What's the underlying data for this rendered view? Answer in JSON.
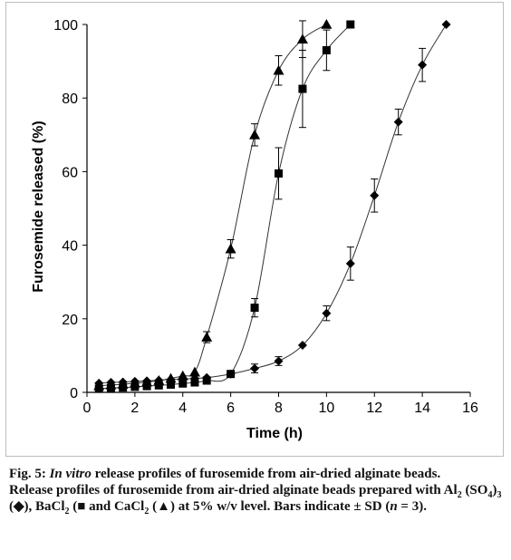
{
  "chart_data": {
    "type": "scatter",
    "title": "",
    "xlabel": "Time (h)",
    "ylabel": "Furosemide released (%)",
    "xlim": [
      0,
      16
    ],
    "ylim": [
      0,
      100
    ],
    "x_ticks": [
      "0",
      "2",
      "4",
      "6",
      "8",
      "10",
      "12",
      "14",
      "16"
    ],
    "y_ticks": [
      "0",
      "20",
      "40",
      "60",
      "80",
      "100"
    ],
    "grid": false,
    "legend": "none",
    "series": [
      {
        "label": "Al2(SO4)3",
        "marker": "diamond",
        "color": "#000000",
        "points": [
          {
            "x": 0.5,
            "y": 2.5,
            "sd": 0.6
          },
          {
            "x": 1,
            "y": 2.7,
            "sd": 0.6
          },
          {
            "x": 1.5,
            "y": 2.8,
            "sd": 0.6
          },
          {
            "x": 2,
            "y": 3.0,
            "sd": 0.6
          },
          {
            "x": 2.5,
            "y": 3.1,
            "sd": 0.6
          },
          {
            "x": 3,
            "y": 3.3,
            "sd": 0.6
          },
          {
            "x": 3.5,
            "y": 3.5,
            "sd": 0.6
          },
          {
            "x": 4,
            "y": 3.6,
            "sd": 0.6
          },
          {
            "x": 4.5,
            "y": 3.8,
            "sd": 0.6
          },
          {
            "x": 5,
            "y": 4.0,
            "sd": 0.6
          },
          {
            "x": 6,
            "y": 5.0,
            "sd": 0.8
          },
          {
            "x": 7,
            "y": 6.5,
            "sd": 1.2
          },
          {
            "x": 8,
            "y": 8.5,
            "sd": 1.2
          },
          {
            "x": 9,
            "y": 12.8,
            "sd": 0.8
          },
          {
            "x": 10,
            "y": 21.5,
            "sd": 2.0
          },
          {
            "x": 11,
            "y": 35.0,
            "sd": 4.5
          },
          {
            "x": 12,
            "y": 53.5,
            "sd": 4.5
          },
          {
            "x": 13,
            "y": 73.5,
            "sd": 3.5
          },
          {
            "x": 14,
            "y": 89.0,
            "sd": 4.5
          },
          {
            "x": 15,
            "y": 100,
            "sd": 0
          }
        ]
      },
      {
        "label": "BaCl2",
        "marker": "square",
        "color": "#000000",
        "points": [
          {
            "x": 0.5,
            "y": 1.0,
            "sd": 0.5
          },
          {
            "x": 1,
            "y": 1.2,
            "sd": 0.5
          },
          {
            "x": 1.5,
            "y": 1.3,
            "sd": 0.5
          },
          {
            "x": 2,
            "y": 1.5,
            "sd": 0.5
          },
          {
            "x": 2.5,
            "y": 1.7,
            "sd": 0.5
          },
          {
            "x": 3,
            "y": 1.9,
            "sd": 0.5
          },
          {
            "x": 3.5,
            "y": 2.1,
            "sd": 0.5
          },
          {
            "x": 4,
            "y": 2.4,
            "sd": 0.5
          },
          {
            "x": 4.5,
            "y": 2.7,
            "sd": 0.5
          },
          {
            "x": 5,
            "y": 3.2,
            "sd": 0.5
          },
          {
            "x": 6,
            "y": 5.0,
            "sd": 0.8
          },
          {
            "x": 7,
            "y": 23.0,
            "sd": 2.5
          },
          {
            "x": 8,
            "y": 59.5,
            "sd": 7.0
          },
          {
            "x": 9,
            "y": 82.5,
            "sd": 10.5
          },
          {
            "x": 10,
            "y": 93.0,
            "sd": 5.5
          },
          {
            "x": 11,
            "y": 100,
            "sd": 0
          }
        ]
      },
      {
        "label": "CaCl2",
        "marker": "triangle",
        "color": "#000000",
        "points": [
          {
            "x": 0.5,
            "y": 1.8,
            "sd": 0.5
          },
          {
            "x": 1,
            "y": 2.0,
            "sd": 0.5
          },
          {
            "x": 1.5,
            "y": 2.2,
            "sd": 0.5
          },
          {
            "x": 2,
            "y": 2.5,
            "sd": 0.5
          },
          {
            "x": 2.5,
            "y": 2.8,
            "sd": 0.5
          },
          {
            "x": 3,
            "y": 3.2,
            "sd": 0.5
          },
          {
            "x": 3.5,
            "y": 3.8,
            "sd": 0.5
          },
          {
            "x": 4,
            "y": 4.5,
            "sd": 0.5
          },
          {
            "x": 4.5,
            "y": 5.5,
            "sd": 0.8
          },
          {
            "x": 5,
            "y": 15.0,
            "sd": 1.5
          },
          {
            "x": 6,
            "y": 39.0,
            "sd": 2.5
          },
          {
            "x": 7,
            "y": 70.0,
            "sd": 3.0
          },
          {
            "x": 8,
            "y": 87.5,
            "sd": 4.0
          },
          {
            "x": 9,
            "y": 96.0,
            "sd": 5.0
          },
          {
            "x": 10,
            "y": 100,
            "sd": 0
          }
        ]
      }
    ]
  },
  "caption": {
    "fig_label": "Fig. 5:",
    "fig_title_italic": "In vitro",
    "fig_title_rest": "release profiles of furosemide from air-dried alginate beads.",
    "line1": "Release profiles of furosemide from air-dried alginate beads prepared with Al",
    "al_sub": "2",
    "so4_open": "(SO",
    "so4_sub": "4",
    "so4_close": ")",
    "so4_sub2": "3",
    "al_marker": "(◆), BaCl",
    "ba_sub": "2",
    "ba_marker": "(■ and CaCl",
    "ca_sub": "2",
    "ca_marker": "(▲) at 5% w/v level. Bars indicate ± SD (",
    "n_italic": "n",
    "n_rest": "= 3)."
  }
}
